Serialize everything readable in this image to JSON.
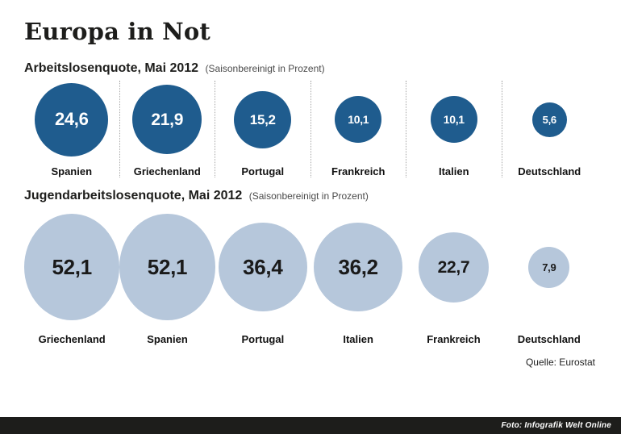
{
  "page": {
    "title": "Europa in Not",
    "source": "Quelle: Eurostat",
    "credit": "Foto: Infografik Welt Online"
  },
  "colors": {
    "dark_bubble": "#1f5c8e",
    "light_bubble": "#b6c7db",
    "dark_text": "#1a1a1a",
    "white_text": "#ffffff",
    "footer_bar": "#1d1d1b"
  },
  "chart_data": [
    {
      "type": "bubble",
      "title": "Arbeitslosenquote, Mai 2012",
      "note": "(Saisonbereinigt in Prozent)",
      "categories": [
        "Spanien",
        "Griechenland",
        "Portugal",
        "Frankreich",
        "Italien",
        "Deutschland"
      ],
      "values": [
        24.6,
        21.9,
        15.2,
        10.1,
        10.1,
        5.6
      ],
      "value_labels": [
        "24,6",
        "21,9",
        "15,2",
        "10,1",
        "10,1",
        "5,6"
      ],
      "circle_color": "#1f5c8e",
      "text_color": "#ffffff",
      "separators": true,
      "layout": "single horizontal row, circle area proportional to value, shared scale with second chart"
    },
    {
      "type": "bubble",
      "title": "Jugendarbeitslosenquote, Mai 2012",
      "note": "(Saisonbereinigt in Prozent)",
      "categories": [
        "Griechenland",
        "Spanien",
        "Portugal",
        "Italien",
        "Frankreich",
        "Deutschland"
      ],
      "values": [
        52.1,
        52.1,
        36.4,
        36.2,
        22.7,
        7.9
      ],
      "value_labels": [
        "52,1",
        "52,1",
        "36,4",
        "36,2",
        "22,7",
        "7,9"
      ],
      "circle_color": "#b6c7db",
      "text_color": "#1a1a1a",
      "separators": false,
      "layout": "single horizontal row, circle area proportional to value, shared scale with first chart"
    }
  ]
}
